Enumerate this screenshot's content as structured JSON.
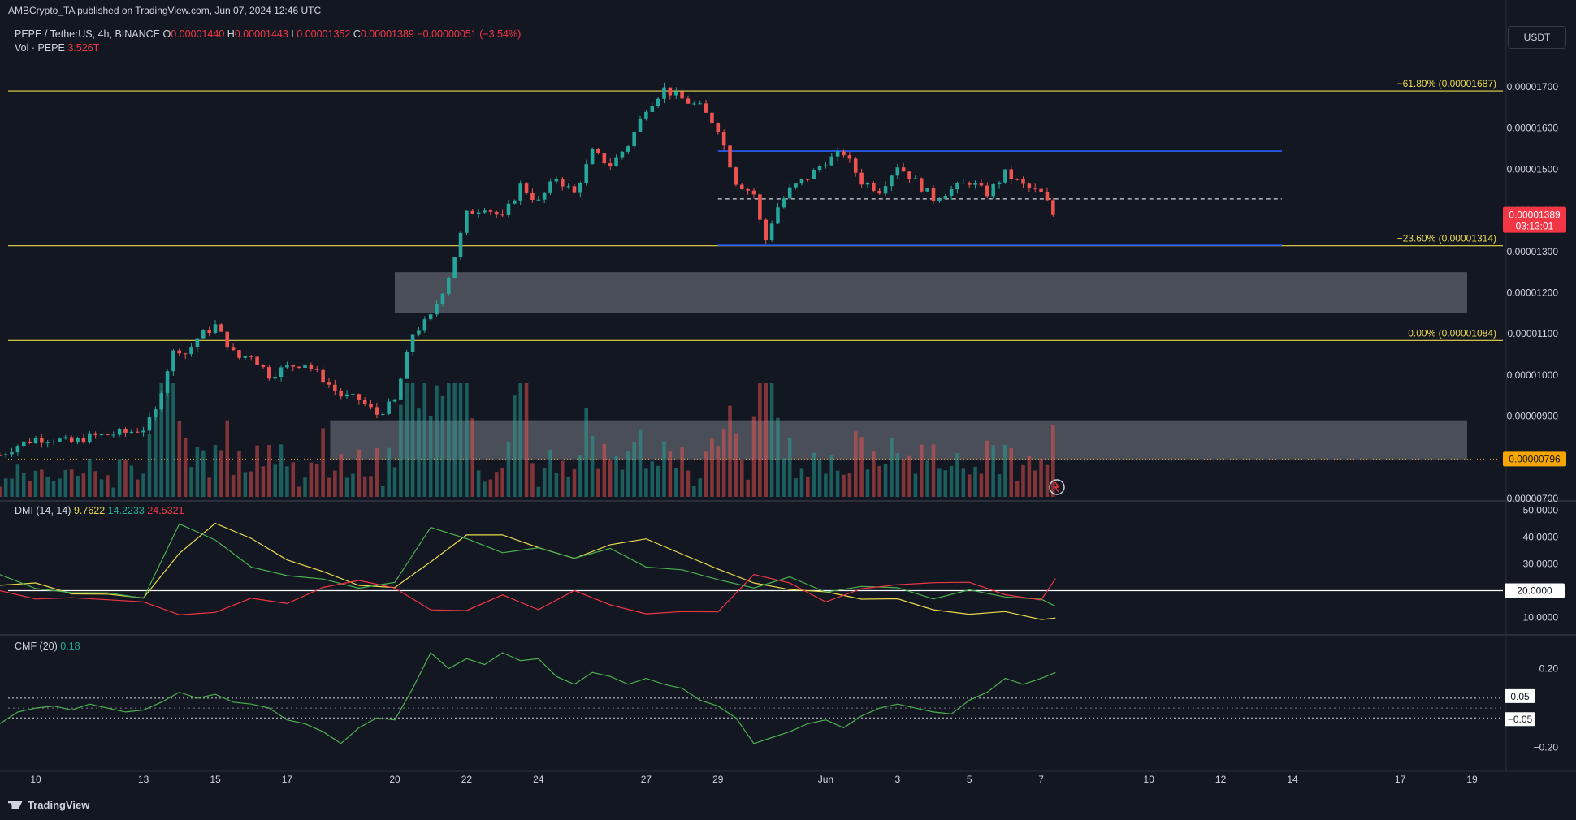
{
  "header": {
    "publish_line": "AMBCrypto_TA published on TradingView.com, Jun 07, 2024 12:46 UTC",
    "symbol": "PEPE / TetherUS, 4h, BINANCE",
    "o_label": "O",
    "o_value": "0.00001440",
    "h_label": "H",
    "h_value": "0.00001443",
    "l_label": "L",
    "l_value": "0.00001352",
    "c_label": "C",
    "c_value": "0.00001389",
    "change": "−0.00000051 (−3.54%)",
    "volume_label": "Vol · PEPE",
    "volume_value": "3.526T",
    "currency_button": "USDT"
  },
  "branding": {
    "logo_text": "TradingView"
  },
  "colors": {
    "up": "#26a69a",
    "down": "#ef5350",
    "fib": "#e9d84d",
    "channel": "#2962ff",
    "zone": "#787b86",
    "dmi_adx": "#e9d84d",
    "dmi_plus": "#4caf50",
    "dmi_minus": "#f23645",
    "cmf": "#4caf50"
  },
  "chart_data": [
    {
      "type": "candlestick",
      "title": "PEPE / TetherUS, 4h, BINANCE",
      "y_axis_ticks": [
        "0.00001700",
        "0.00001600",
        "0.00001500",
        "0.00001400",
        "0.00001300",
        "0.00001200",
        "0.00001100",
        "0.00001000",
        "0.00000900",
        "0.00000800",
        "0.00000700"
      ],
      "x_axis_ticks": [
        {
          "label": "10",
          "day": 10
        },
        {
          "label": "13",
          "day": 13
        },
        {
          "label": "15",
          "day": 15
        },
        {
          "label": "17",
          "day": 17
        },
        {
          "label": "20",
          "day": 20
        },
        {
          "label": "22",
          "day": 22
        },
        {
          "label": "24",
          "day": 24
        },
        {
          "label": "27",
          "day": 27
        },
        {
          "label": "29",
          "day": 29
        },
        {
          "label": "Jun",
          "day": 32
        },
        {
          "label": "3",
          "day": 34
        },
        {
          "label": "5",
          "day": 36
        },
        {
          "label": "7",
          "day": 38
        },
        {
          "label": "10",
          "day": 41
        },
        {
          "label": "12",
          "day": 43
        },
        {
          "label": "14",
          "day": 45
        },
        {
          "label": "17",
          "day": 48
        },
        {
          "label": "19",
          "day": 50
        }
      ],
      "price_labels": {
        "last": "0.00001389",
        "countdown": "03:13:01",
        "marker": "0.00000796"
      },
      "fib_levels": [
        {
          "label": "−61.80% (0.00001687)",
          "price": 1.69e-05
        },
        {
          "label": "−23.60% (0.00001314)",
          "price": 1.314e-05
        },
        {
          "label": "0.00% (0.00001084)",
          "price": 1.084e-05
        }
      ],
      "range_channel": {
        "top": 1.544e-05,
        "mid": 1.428e-05,
        "bottom": 1.315e-05,
        "start_day": 29.0,
        "end_day": 45.0
      },
      "zones": [
        {
          "top": 1.25e-05,
          "bottom": 1.15e-05,
          "start_day": 20.0,
          "end_day": 50.0
        },
        {
          "top": 8.9e-06,
          "bottom": 7.95e-06,
          "start_day": 18.2,
          "end_day": 50.0
        }
      ],
      "price_path": [
        [
          9.0,
          8.05e-06
        ],
        [
          9.5,
          8.3e-06
        ],
        [
          10.0,
          8.45e-06
        ],
        [
          10.5,
          8.45e-06
        ],
        [
          11.0,
          8.35e-06
        ],
        [
          11.5,
          8.5e-06
        ],
        [
          12.0,
          8.55e-06
        ],
        [
          12.5,
          8.6e-06
        ],
        [
          13.0,
          8.7e-06
        ],
        [
          13.3,
          9e-06
        ],
        [
          13.6,
          1e-05
        ],
        [
          13.9,
          1.07e-05
        ],
        [
          14.2,
          1.05e-05
        ],
        [
          14.5,
          1.09e-05
        ],
        [
          15.0,
          1.12e-05
        ],
        [
          15.3,
          1.08e-05
        ],
        [
          15.6,
          1.04e-05
        ],
        [
          16.0,
          1.05e-05
        ],
        [
          16.5,
          1e-05
        ],
        [
          17.0,
          1.02e-05
        ],
        [
          17.5,
          1.03e-05
        ],
        [
          18.0,
          9.9e-06
        ],
        [
          18.5,
          9.5e-06
        ],
        [
          19.0,
          9.4e-06
        ],
        [
          19.5,
          9.05e-06
        ],
        [
          20.0,
          9.35e-06
        ],
        [
          20.5,
          1.1e-05
        ],
        [
          21.0,
          1.14e-05
        ],
        [
          21.5,
          1.24e-05
        ],
        [
          22.0,
          1.39e-05
        ],
        [
          22.5,
          1.41e-05
        ],
        [
          23.0,
          1.38e-05
        ],
        [
          23.5,
          1.46e-05
        ],
        [
          24.0,
          1.42e-05
        ],
        [
          24.5,
          1.48e-05
        ],
        [
          25.0,
          1.44e-05
        ],
        [
          25.5,
          1.54e-05
        ],
        [
          26.0,
          1.51e-05
        ],
        [
          26.5,
          1.56e-05
        ],
        [
          27.0,
          1.65e-05
        ],
        [
          27.5,
          1.695e-05
        ],
        [
          28.0,
          1.67e-05
        ],
        [
          28.5,
          1.65e-05
        ],
        [
          29.0,
          1.6e-05
        ],
        [
          29.5,
          1.47e-05
        ],
        [
          30.0,
          1.44e-05
        ],
        [
          30.3,
          1.32e-05
        ],
        [
          30.6,
          1.4e-05
        ],
        [
          31.0,
          1.45e-05
        ],
        [
          31.5,
          1.48e-05
        ],
        [
          32.0,
          1.52e-05
        ],
        [
          32.5,
          1.54e-05
        ],
        [
          33.0,
          1.47e-05
        ],
        [
          33.5,
          1.45e-05
        ],
        [
          34.0,
          1.51e-05
        ],
        [
          34.5,
          1.47e-05
        ],
        [
          35.0,
          1.43e-05
        ],
        [
          35.5,
          1.45e-05
        ],
        [
          36.0,
          1.47e-05
        ],
        [
          36.5,
          1.44e-05
        ],
        [
          37.0,
          1.49e-05
        ],
        [
          37.5,
          1.46e-05
        ],
        [
          38.0,
          1.44e-05
        ],
        [
          38.4,
          1.389e-05
        ]
      ],
      "volume_scale": "0 to 3.526T (relative)"
    },
    {
      "type": "line",
      "title": "DMI (14, 14)",
      "series": [
        {
          "name": "ADX",
          "value": "9.7622",
          "x": [
            9,
            10,
            11,
            12,
            13,
            14,
            15,
            16,
            17,
            18,
            19,
            20,
            21,
            22,
            23,
            24,
            25,
            26,
            27,
            28,
            29,
            30,
            31,
            32,
            33,
            34,
            35,
            36,
            37,
            38,
            38.4
          ],
          "values": [
            22,
            22,
            20,
            18,
            17,
            35,
            44,
            40,
            32,
            26,
            23,
            21,
            30,
            42,
            40,
            36,
            33,
            36,
            40,
            34,
            27,
            24,
            20,
            19,
            18,
            16,
            13,
            12,
            11,
            10,
            9.8
          ]
        },
        {
          "name": "+DI",
          "value": "14.2233",
          "x": [
            9,
            10,
            11,
            12,
            13,
            14,
            15,
            16,
            17,
            18,
            19,
            20,
            21,
            22,
            23,
            24,
            25,
            26,
            27,
            28,
            29,
            30,
            31,
            32,
            33,
            34,
            35,
            36,
            37,
            38,
            38.4
          ],
          "values": [
            26,
            21,
            20,
            18,
            18,
            45,
            38,
            30,
            25,
            24,
            22,
            22,
            44,
            40,
            33,
            37,
            32,
            35,
            30,
            27,
            24,
            22,
            24,
            20,
            22,
            20,
            18,
            20,
            17,
            18,
            14.2
          ]
        },
        {
          "name": "−DI",
          "value": "24.5321",
          "x": [
            9,
            10,
            11,
            12,
            13,
            14,
            15,
            16,
            17,
            18,
            19,
            20,
            21,
            22,
            23,
            24,
            25,
            26,
            27,
            28,
            29,
            30,
            31,
            32,
            33,
            34,
            35,
            36,
            37,
            38,
            38.4
          ],
          "values": [
            20,
            18,
            17,
            16,
            17,
            10,
            12,
            18,
            14,
            22,
            24,
            20,
            14,
            12,
            18,
            14,
            19,
            15,
            12,
            11,
            13,
            26,
            22,
            17,
            20,
            22,
            24,
            22,
            19,
            17,
            24.5
          ]
        }
      ],
      "reference": {
        "label": "20.0000",
        "value": 20
      },
      "y_axis_ticks": [
        "50.0000",
        "40.0000",
        "30.0000",
        "10.0000"
      ],
      "ylim": [
        5,
        52
      ]
    },
    {
      "type": "line",
      "title": "CMF (20)",
      "series": [
        {
          "name": "CMF",
          "value": "0.18",
          "x": [
            9,
            9.5,
            10,
            10.5,
            11,
            11.5,
            12,
            12.5,
            13,
            13.5,
            14,
            14.5,
            15,
            15.5,
            16,
            16.5,
            17,
            17.5,
            18,
            18.5,
            19,
            19.5,
            20,
            20.5,
            21,
            21.5,
            22,
            22.5,
            23,
            23.5,
            24,
            24.5,
            25,
            25.5,
            26,
            26.5,
            27,
            27.5,
            28,
            28.5,
            29,
            29.5,
            30,
            30.5,
            31,
            31.5,
            32,
            32.5,
            33,
            33.5,
            34,
            34.5,
            35,
            35.5,
            36,
            36.5,
            37,
            37.5,
            38,
            38.4
          ],
          "values": [
            -0.08,
            -0.02,
            0.0,
            0.01,
            -0.01,
            0.02,
            0.0,
            -0.02,
            -0.01,
            0.03,
            0.08,
            0.05,
            0.07,
            0.03,
            0.02,
            0.0,
            -0.06,
            -0.08,
            -0.12,
            -0.18,
            -0.1,
            -0.05,
            -0.06,
            0.1,
            0.28,
            0.2,
            0.25,
            0.22,
            0.28,
            0.24,
            0.25,
            0.16,
            0.12,
            0.18,
            0.16,
            0.12,
            0.15,
            0.12,
            0.1,
            0.04,
            0.01,
            -0.05,
            -0.18,
            -0.15,
            -0.12,
            -0.08,
            -0.06,
            -0.1,
            -0.04,
            0.0,
            0.02,
            0.0,
            -0.02,
            -0.03,
            0.04,
            0.08,
            0.15,
            0.12,
            0.15,
            0.18
          ]
        }
      ],
      "reference_lines": [
        {
          "label": "0.05",
          "value": 0.05
        },
        {
          "label": "−0.05",
          "value": -0.05
        }
      ],
      "y_axis_ticks": [
        "0.20",
        "−0.20"
      ],
      "ylim": [
        -0.3,
        0.35
      ]
    }
  ]
}
